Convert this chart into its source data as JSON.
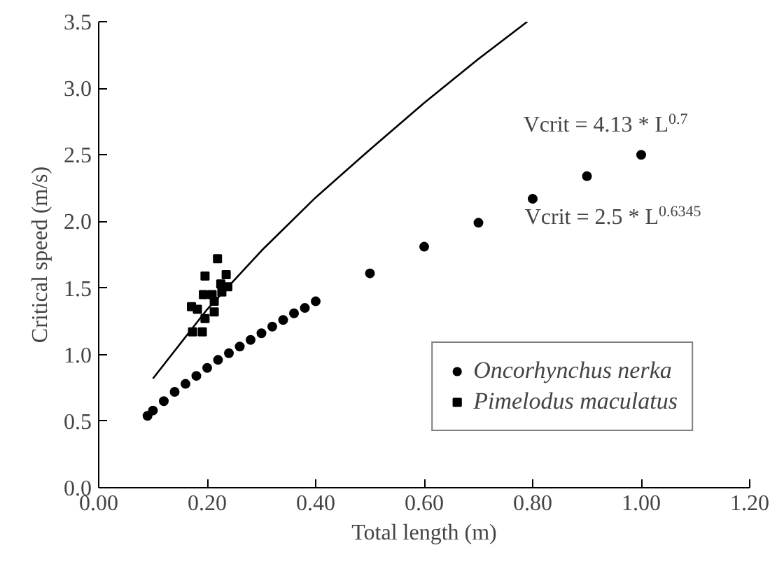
{
  "chart_data": {
    "type": "scatter",
    "xlabel": "Total length (m)",
    "ylabel": "Critical speed (m/s)",
    "xlim": [
      0,
      1.2
    ],
    "ylim": [
      0,
      3.5
    ],
    "xticks": [
      {
        "value": 0,
        "label": "0.00"
      },
      {
        "value": 0.2,
        "label": "0.20"
      },
      {
        "value": 0.4,
        "label": "0.40"
      },
      {
        "value": 0.6,
        "label": "0.60"
      },
      {
        "value": 0.8,
        "label": "0.80"
      },
      {
        "value": 1.0,
        "label": "1.00"
      },
      {
        "value": 1.2,
        "label": "1.20"
      }
    ],
    "yticks": [
      {
        "value": 0,
        "label": "0.0"
      },
      {
        "value": 0.5,
        "label": "0.5"
      },
      {
        "value": 1.0,
        "label": "1.0"
      },
      {
        "value": 1.5,
        "label": "1.5"
      },
      {
        "value": 2.0,
        "label": "2.0"
      },
      {
        "value": 2.5,
        "label": "2.5"
      },
      {
        "value": 3.0,
        "label": "3.0"
      },
      {
        "value": 3.5,
        "label": "3.5"
      }
    ],
    "grid": false,
    "legend": "bottom right",
    "series": [
      {
        "name": "Oncorhynchus nerka",
        "marker": "circle",
        "color": "#000000",
        "x": [
          0.09,
          0.1,
          0.12,
          0.14,
          0.16,
          0.18,
          0.2,
          0.22,
          0.24,
          0.26,
          0.28,
          0.3,
          0.32,
          0.34,
          0.36,
          0.38,
          0.4,
          0.5,
          0.6,
          0.7,
          0.8,
          0.9,
          1.0
        ],
        "values": [
          0.54,
          0.58,
          0.65,
          0.72,
          0.78,
          0.84,
          0.9,
          0.96,
          1.01,
          1.06,
          1.11,
          1.16,
          1.21,
          1.26,
          1.31,
          1.35,
          1.4,
          1.61,
          1.81,
          1.99,
          2.17,
          2.34,
          2.5
        ]
      },
      {
        "name": "Pimelodus maculatus",
        "marker": "square",
        "color": "#000000",
        "x": [
          0.173,
          0.191,
          0.171,
          0.182,
          0.196,
          0.193,
          0.196,
          0.209,
          0.213,
          0.213,
          0.219,
          0.225,
          0.235,
          0.238,
          0.227
        ],
        "values": [
          1.17,
          1.17,
          1.36,
          1.34,
          1.27,
          1.45,
          1.59,
          1.45,
          1.4,
          1.32,
          1.72,
          1.53,
          1.6,
          1.51,
          1.47
        ]
      },
      {
        "type": "line",
        "marker": "none",
        "line_style": "solid",
        "color": "#000000",
        "x": [
          0.1,
          0.2,
          0.3,
          0.4,
          0.5,
          0.6,
          0.7,
          0.79
        ],
        "values": [
          0.82,
          1.34,
          1.78,
          2.18,
          2.54,
          2.89,
          3.22,
          3.5
        ]
      }
    ],
    "annotations": [
      "Vcrit = 4.13 * L$^{0.7}$",
      "Vcrit = 2.5 * L$^{0.6345}$"
    ]
  }
}
